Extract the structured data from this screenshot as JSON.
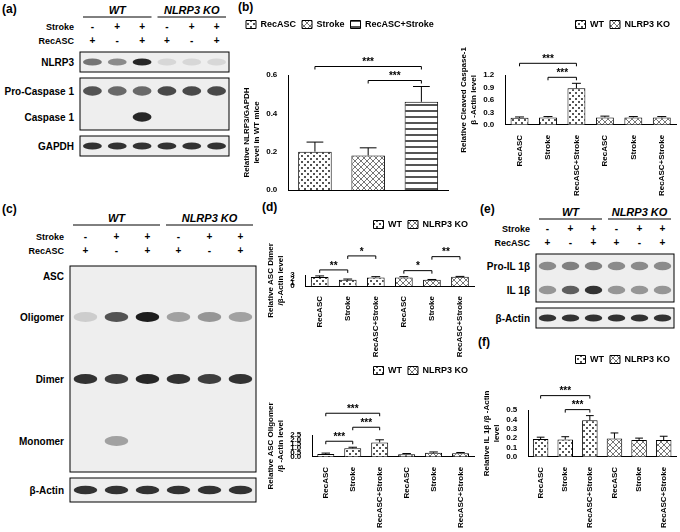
{
  "blots": [
    {
      "panel": "(a)",
      "groups": [
        "WT",
        "NLRP3 KO"
      ],
      "conditions": [
        {
          "label": "Stroke",
          "signs": [
            "-",
            "+",
            "+",
            "-",
            "+",
            "+"
          ]
        },
        {
          "label": "RecASC",
          "signs": [
            "+",
            "-",
            "+",
            "+",
            "-",
            "+"
          ]
        }
      ],
      "boxes": [
        {
          "rows": [
            {
              "label": "NLRP3",
              "intensity": [
                0.55,
                0.45,
                0.9,
                0.1,
                0.1,
                0.1
              ]
            }
          ]
        },
        {
          "rows": [
            {
              "label": "Pro-Caspase 1",
              "intensity": [
                0.7,
                0.6,
                0.6,
                0.75,
                0.75,
                0.75
              ]
            },
            {
              "label": "Caspase 1",
              "intensity": [
                0,
                0,
                0.9,
                0,
                0,
                0
              ]
            }
          ]
        },
        {
          "rows": [
            {
              "label": "GAPDH",
              "intensity": [
                0.85,
                0.85,
                0.85,
                0.85,
                0.85,
                0.85
              ]
            }
          ]
        }
      ]
    },
    {
      "panel": "(c)",
      "groups": [
        "WT",
        "NLRP3 KO"
      ],
      "conditions": [
        {
          "label": "Stroke",
          "signs": [
            "-",
            "+",
            "+",
            "-",
            "+",
            "+"
          ]
        },
        {
          "label": "RecASC",
          "signs": [
            "+",
            "-",
            "+",
            "+",
            "-",
            "+"
          ]
        }
      ],
      "boxes": [
        {
          "rows": [
            {
              "label": "ASC"
            },
            {
              "label": "Oligomer",
              "intensity": [
                0.15,
                0.7,
                0.95,
                0.35,
                0.4,
                0.35
              ]
            },
            {
              "label": "Dimer",
              "intensity": [
                0.85,
                0.8,
                0.9,
                0.85,
                0.8,
                0.85
              ]
            },
            {
              "label": "Monomer",
              "intensity": [
                0,
                0.35,
                0,
                0,
                0,
                0
              ]
            }
          ]
        },
        {
          "rows": [
            {
              "label": "β-Actin",
              "intensity": [
                0.85,
                0.85,
                0.85,
                0.85,
                0.85,
                0.85
              ]
            }
          ]
        }
      ]
    },
    {
      "panel": "(e)",
      "groups": [
        "WT",
        "NLRP3 KO"
      ],
      "conditions": [
        {
          "label": "Stroke",
          "signs": [
            "-",
            "+",
            "+",
            "-",
            "+",
            "+"
          ]
        },
        {
          "label": "RecASC",
          "signs": [
            "+",
            "-",
            "+",
            "+",
            "-",
            "+"
          ]
        }
      ],
      "boxes": [
        {
          "rows": [
            {
              "label": "Pro-IL 1β",
              "intensity": [
                0.45,
                0.5,
                0.5,
                0.45,
                0.45,
                0.45
              ]
            },
            {
              "label": "IL 1β",
              "intensity": [
                0.4,
                0.65,
                0.85,
                0.4,
                0.4,
                0.4
              ]
            }
          ]
        },
        {
          "rows": [
            {
              "label": "β-Actin",
              "intensity": [
                0.85,
                0.85,
                0.85,
                0.85,
                0.85,
                0.85
              ]
            }
          ]
        }
      ]
    }
  ],
  "chart_data": [
    {
      "type": "bar",
      "panel": "(b)",
      "ylabel": [
        "Relative NLRP3/GAPDH",
        "level in WT mice"
      ],
      "categories": [
        "RecASC",
        "Stroke",
        "RecASC+Stroke"
      ],
      "values": [
        0.2,
        0.18,
        0.46
      ],
      "errors": [
        0.05,
        0.04,
        0.08
      ],
      "colors": [
        "#555555",
        "#777777",
        "#555555"
      ],
      "ylim": [
        0,
        0.6
      ],
      "yticks": [
        {
          "value": 0,
          "label": "0.0"
        },
        0.2,
        0.4,
        0.6
      ],
      "grid": false,
      "legend": "top-left",
      "tick_labels": "y",
      "significance": [
        {
          "from": 1,
          "to": 2,
          "label": "***"
        },
        {
          "from": 0,
          "to": 2,
          "label": "***"
        }
      ]
    },
    {
      "type": "bar",
      "ylabel": [
        "Relative Cleaved Caspase-1",
        "β -Actin level"
      ],
      "categories": [
        "RecASC",
        "Stroke",
        "RecASC+Stroke",
        "RecASC",
        "Stroke",
        "RecASC+Stroke"
      ],
      "series": [
        {
          "name": "WT",
          "color": "#555555",
          "values": [
            0.17,
            0.18,
            0.88,
            null,
            null,
            null
          ],
          "errors": [
            0.02,
            0.02,
            0.12,
            null,
            null,
            null
          ]
        },
        {
          "name": "NLRP3 KO",
          "color": "#777777",
          "values": [
            null,
            null,
            null,
            0.18,
            0.18,
            0.18
          ],
          "errors": [
            null,
            null,
            null,
            0.03,
            0.02,
            0.02
          ]
        }
      ],
      "ylim": [
        0,
        1.2
      ],
      "yticks": [
        {
          "value": 0,
          "label": "0.0"
        },
        0.3,
        0.6,
        0.9,
        1.2
      ],
      "grid": false,
      "legend": "top-right",
      "significance": [
        {
          "from": 1,
          "to": 2,
          "label": "***"
        },
        {
          "from": 0,
          "to": 2,
          "label": "***"
        }
      ]
    },
    {
      "type": "bar",
      "panel": "(d)",
      "ylabel": [
        "Relative ASC Dimer",
        "/β-Actin level"
      ],
      "categories": [
        "RecASC",
        "Stroke",
        "RecASC+Stroke",
        "RecASC",
        "Stroke",
        "RecASC+Stroke"
      ],
      "series": [
        {
          "name": "WT",
          "color": "#555555",
          "values": [
            2.45,
            1.7,
            2.3,
            null,
            null,
            null
          ],
          "errors": [
            0.3,
            0.2,
            0.25,
            null,
            null,
            null
          ]
        },
        {
          "name": "NLRP3 KO",
          "color": "#777777",
          "values": [
            null,
            null,
            null,
            2.35,
            1.7,
            2.5
          ],
          "errors": [
            null,
            null,
            null,
            0.2,
            0.08,
            0.12
          ]
        }
      ],
      "ylim": [
        0,
        3
      ],
      "yticks": [
        0,
        1,
        2,
        3
      ],
      "grid": false,
      "legend": "top-right",
      "significance": [
        {
          "from": 0,
          "to": 1,
          "label": "**"
        },
        {
          "from": 1,
          "to": 2,
          "label": "*"
        },
        {
          "from": 3,
          "to": 4,
          "label": "*"
        },
        {
          "from": 4,
          "to": 5,
          "label": "**"
        }
      ]
    },
    {
      "type": "bar",
      "ylabel": [
        "Relative ASC Oligomer",
        "/β -Actin level"
      ],
      "categories": [
        "RecASC",
        "Stroke",
        "RecASC+Stroke",
        "RecASC",
        "Stroke",
        "RecASC+Stroke"
      ],
      "series": [
        {
          "name": "WT",
          "color": "#555555",
          "values": [
            0.33,
            0.98,
            1.65,
            null,
            null,
            null
          ],
          "errors": [
            0.1,
            0.12,
            0.3,
            null,
            null,
            null
          ]
        },
        {
          "name": "NLRP3 KO",
          "color": "#777777",
          "values": [
            null,
            null,
            null,
            0.3,
            0.48,
            0.42
          ],
          "errors": [
            null,
            null,
            null,
            0.08,
            0.08,
            0.08
          ]
        }
      ],
      "ylim": [
        0,
        2.5
      ],
      "yticks": [
        {
          "value": 0,
          "label": "0.0"
        },
        0.5,
        {
          "value": 1,
          "label": "1.0"
        },
        1.5,
        {
          "value": 2,
          "label": "2.0"
        },
        2.5
      ],
      "grid": false,
      "legend": "top-right",
      "significance": [
        {
          "from": 0,
          "to": 1,
          "label": "***"
        },
        {
          "from": 1,
          "to": 2,
          "label": "***"
        },
        {
          "from": 0,
          "to": 2,
          "label": "***"
        }
      ]
    },
    {
      "type": "bar",
      "panel": "(f)",
      "ylabel": [
        "Relative IL 1β /β -Actin",
        "level"
      ],
      "categories": [
        "RecASC",
        "Stroke",
        "RecASC+Stroke",
        "RecASC",
        "Stroke",
        "RecASC+Stroke"
      ],
      "series": [
        {
          "name": "WT",
          "color": "#555555",
          "values": [
            0.19,
            0.185,
            0.39,
            null,
            null,
            null
          ],
          "errors": [
            0.02,
            0.03,
            0.05,
            null,
            null,
            null
          ]
        },
        {
          "name": "NLRP3 KO",
          "color": "#777777",
          "values": [
            null,
            null,
            null,
            0.195,
            0.18,
            0.18
          ],
          "errors": [
            null,
            null,
            null,
            0.06,
            0.02,
            0.04
          ]
        }
      ],
      "ylim": [
        0,
        0.5
      ],
      "yticks": [
        {
          "value": 0,
          "label": "0.0"
        },
        0.1,
        0.2,
        0.3,
        0.4,
        0.5
      ],
      "grid": false,
      "legend": "top-right",
      "significance": [
        {
          "from": 1,
          "to": 2,
          "label": "***"
        },
        {
          "from": 0,
          "to": 2,
          "label": "***"
        }
      ]
    }
  ]
}
